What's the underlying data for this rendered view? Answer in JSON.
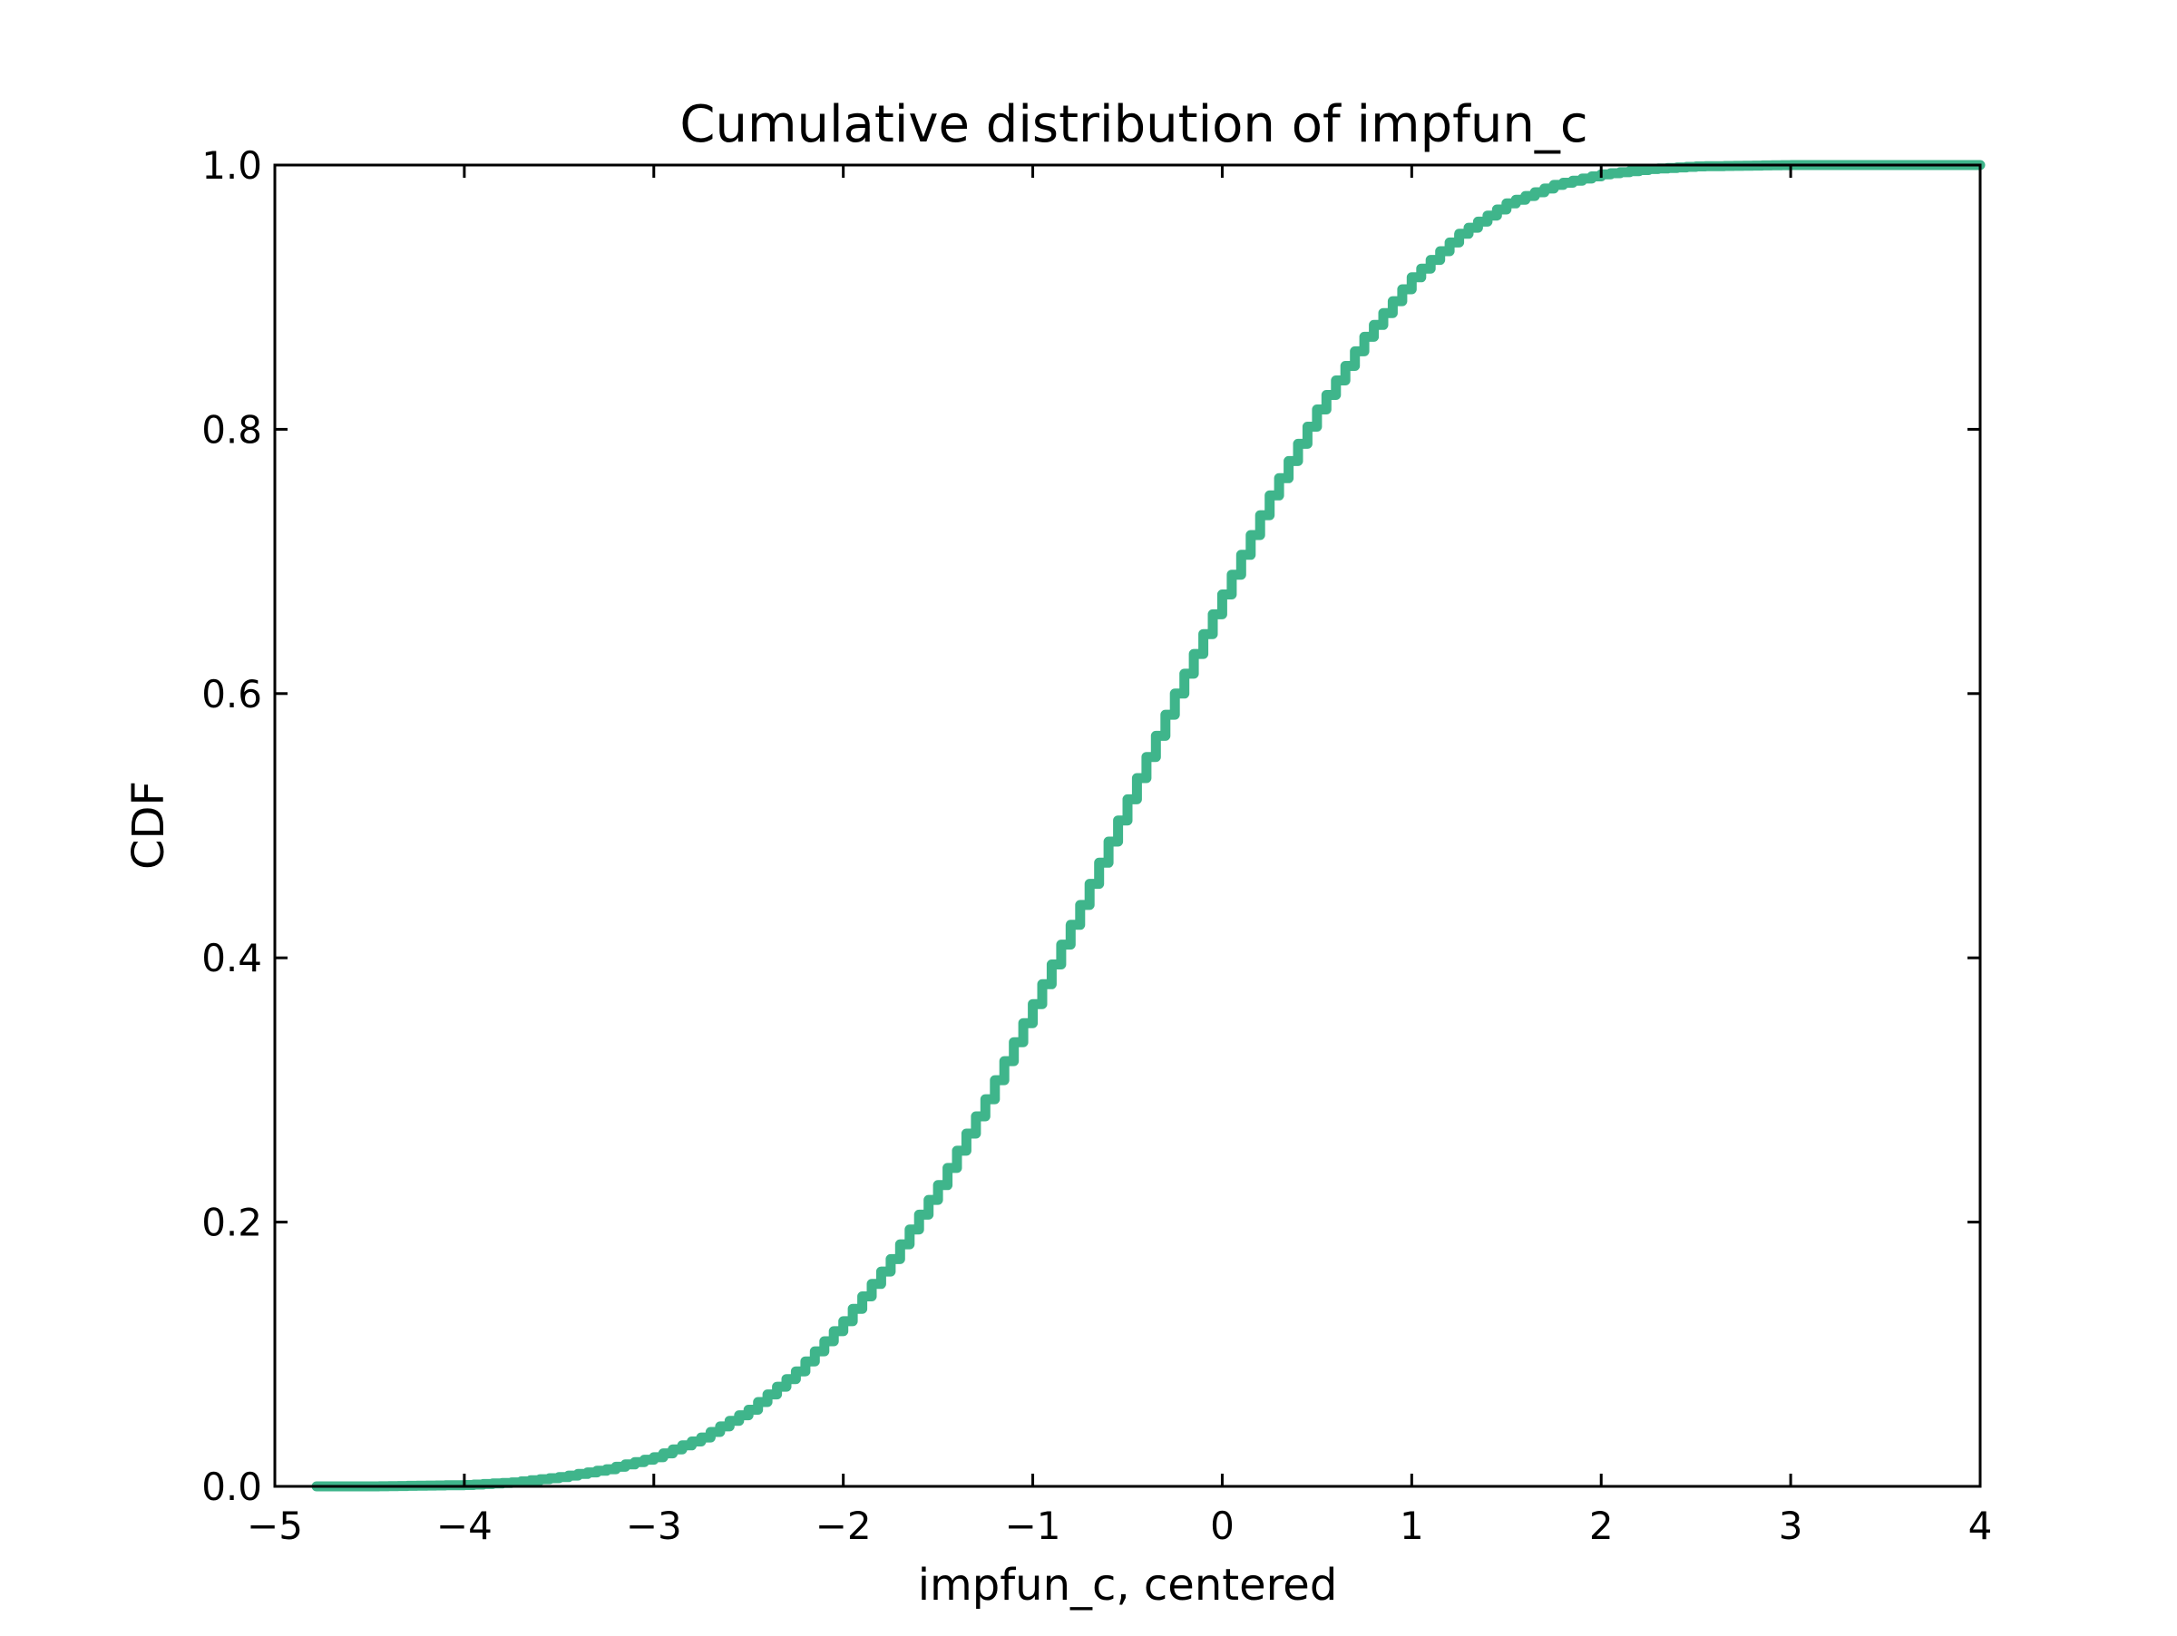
{
  "chart_data": {
    "type": "line",
    "title": "Cumulative distribution of impfun_c",
    "xlabel": "impfun_c, centered",
    "ylabel": "CDF",
    "xlim": [
      -5,
      4
    ],
    "ylim": [
      0.0,
      1.0
    ],
    "x_ticks": [
      -5,
      -4,
      -3,
      -2,
      -1,
      0,
      1,
      2,
      3,
      4
    ],
    "x_tick_labels": [
      "−5",
      "−4",
      "−3",
      "−2",
      "−1",
      "0",
      "1",
      "2",
      "3",
      "4"
    ],
    "y_ticks": [
      0.0,
      0.2,
      0.4,
      0.6,
      0.8,
      1.0
    ],
    "y_tick_labels": [
      "0.0",
      "0.2",
      "0.4",
      "0.6",
      "0.8",
      "1.0"
    ],
    "grid": false,
    "series": [
      {
        "color": "#3fb58b",
        "step": true,
        "x": [
          -4.78,
          -4.5,
          -4.0,
          -3.75,
          -3.5,
          -3.25,
          -3.0,
          -2.75,
          -2.5,
          -2.25,
          -2.0,
          -1.75,
          -1.5,
          -1.25,
          -1.0,
          -0.75,
          -0.5,
          -0.25,
          0.0,
          0.25,
          0.5,
          0.75,
          1.0,
          1.25,
          1.5,
          1.75,
          2.0,
          2.25,
          2.5,
          3.0,
          4.0
        ],
        "y": [
          0.0,
          0.0,
          0.001,
          0.003,
          0.007,
          0.013,
          0.022,
          0.037,
          0.058,
          0.087,
          0.125,
          0.172,
          0.228,
          0.293,
          0.365,
          0.44,
          0.52,
          0.6,
          0.675,
          0.75,
          0.815,
          0.87,
          0.915,
          0.948,
          0.971,
          0.985,
          0.993,
          0.997,
          0.999,
          1.0,
          1.0
        ]
      }
    ]
  }
}
